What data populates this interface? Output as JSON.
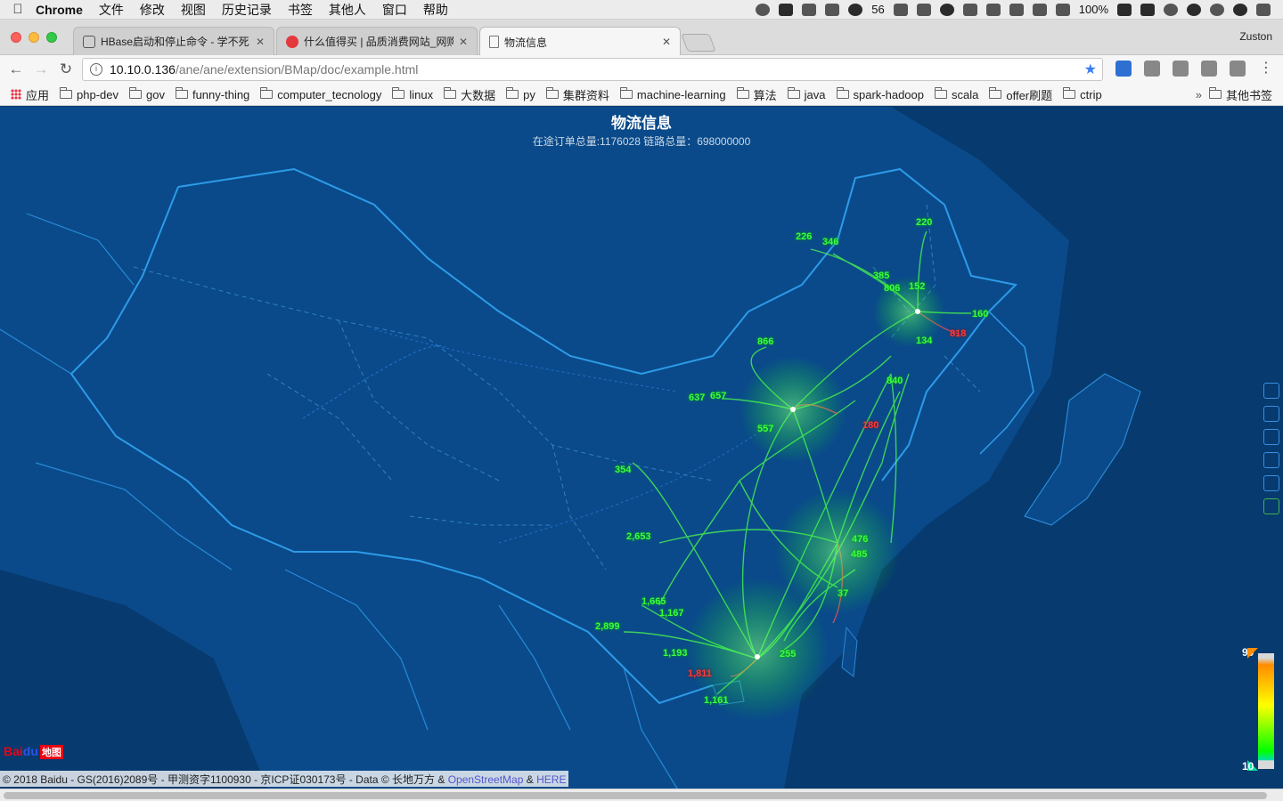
{
  "menubar": {
    "app_name": "Chrome",
    "items": [
      "文件",
      "修改",
      "视图",
      "历史记录",
      "书签",
      "其他人",
      "窗口",
      "帮助"
    ],
    "tray_count": "56",
    "battery": "100%"
  },
  "tabs": [
    {
      "title": "HBase启动和停止命令 - 学不死"
    },
    {
      "title": "什么值得买 | 品质消费网站_网购"
    },
    {
      "title": "物流信息"
    }
  ],
  "profile": "Zuston",
  "omnibox": {
    "host": "10.10.0.136",
    "path": "/ane/ane/extension/BMap/doc/example.html"
  },
  "bookmarks": {
    "apps": "应用",
    "folders": [
      "php-dev",
      "gov",
      "funny-thing",
      "computer_tecnology",
      "linux",
      "大数据",
      "py",
      "集群资料",
      "machine-learning",
      "算法",
      "java",
      "spark-hadoop",
      "scala",
      "offer刷题",
      "ctrip"
    ],
    "other": "其他书签"
  },
  "map": {
    "title": "物流信息",
    "subtitle": "在途订单总量:1176028 链路总量：698000000",
    "visual_map": {
      "max": "90",
      "min": "10"
    },
    "colors": {
      "flow_green": "#3cff3c",
      "flow_red": "#ff3a3a",
      "sea": "#08427c"
    },
    "labels": [
      {
        "text": "220",
        "color": "green"
      },
      {
        "text": "226",
        "color": "green"
      },
      {
        "text": "346",
        "color": "green"
      },
      {
        "text": "385",
        "color": "green"
      },
      {
        "text": "806",
        "color": "green"
      },
      {
        "text": "152",
        "color": "green"
      },
      {
        "text": "160",
        "color": "green"
      },
      {
        "text": "134",
        "color": "green"
      },
      {
        "text": "818",
        "color": "red"
      },
      {
        "text": "866",
        "color": "green"
      },
      {
        "text": "637",
        "color": "green"
      },
      {
        "text": "657",
        "color": "green"
      },
      {
        "text": "840",
        "color": "green"
      },
      {
        "text": "557",
        "color": "green"
      },
      {
        "text": "180",
        "color": "red"
      },
      {
        "text": "354",
        "color": "green"
      },
      {
        "text": "2,653",
        "color": "green"
      },
      {
        "text": "476",
        "color": "green"
      },
      {
        "text": "485",
        "color": "green"
      },
      {
        "text": "1,665",
        "color": "green"
      },
      {
        "text": "1,167",
        "color": "green"
      },
      {
        "text": "37",
        "color": "green"
      },
      {
        "text": "2,899",
        "color": "green"
      },
      {
        "text": "1,193",
        "color": "green"
      },
      {
        "text": "255",
        "color": "green"
      },
      {
        "text": "1,161",
        "color": "green"
      },
      {
        "text": "1,811",
        "color": "red"
      }
    ],
    "baidu": {
      "bai": "Bai",
      "du": "du",
      "ditu": "地图"
    },
    "copyright": "© 2018 Baidu - GS(2016)2089号 - 甲测资字1100930 - 京ICP证030173号 - Data © 长地万方 &",
    "osm_link": "OpenStreetMap",
    "amp": "&",
    "here_link": "HERE"
  }
}
